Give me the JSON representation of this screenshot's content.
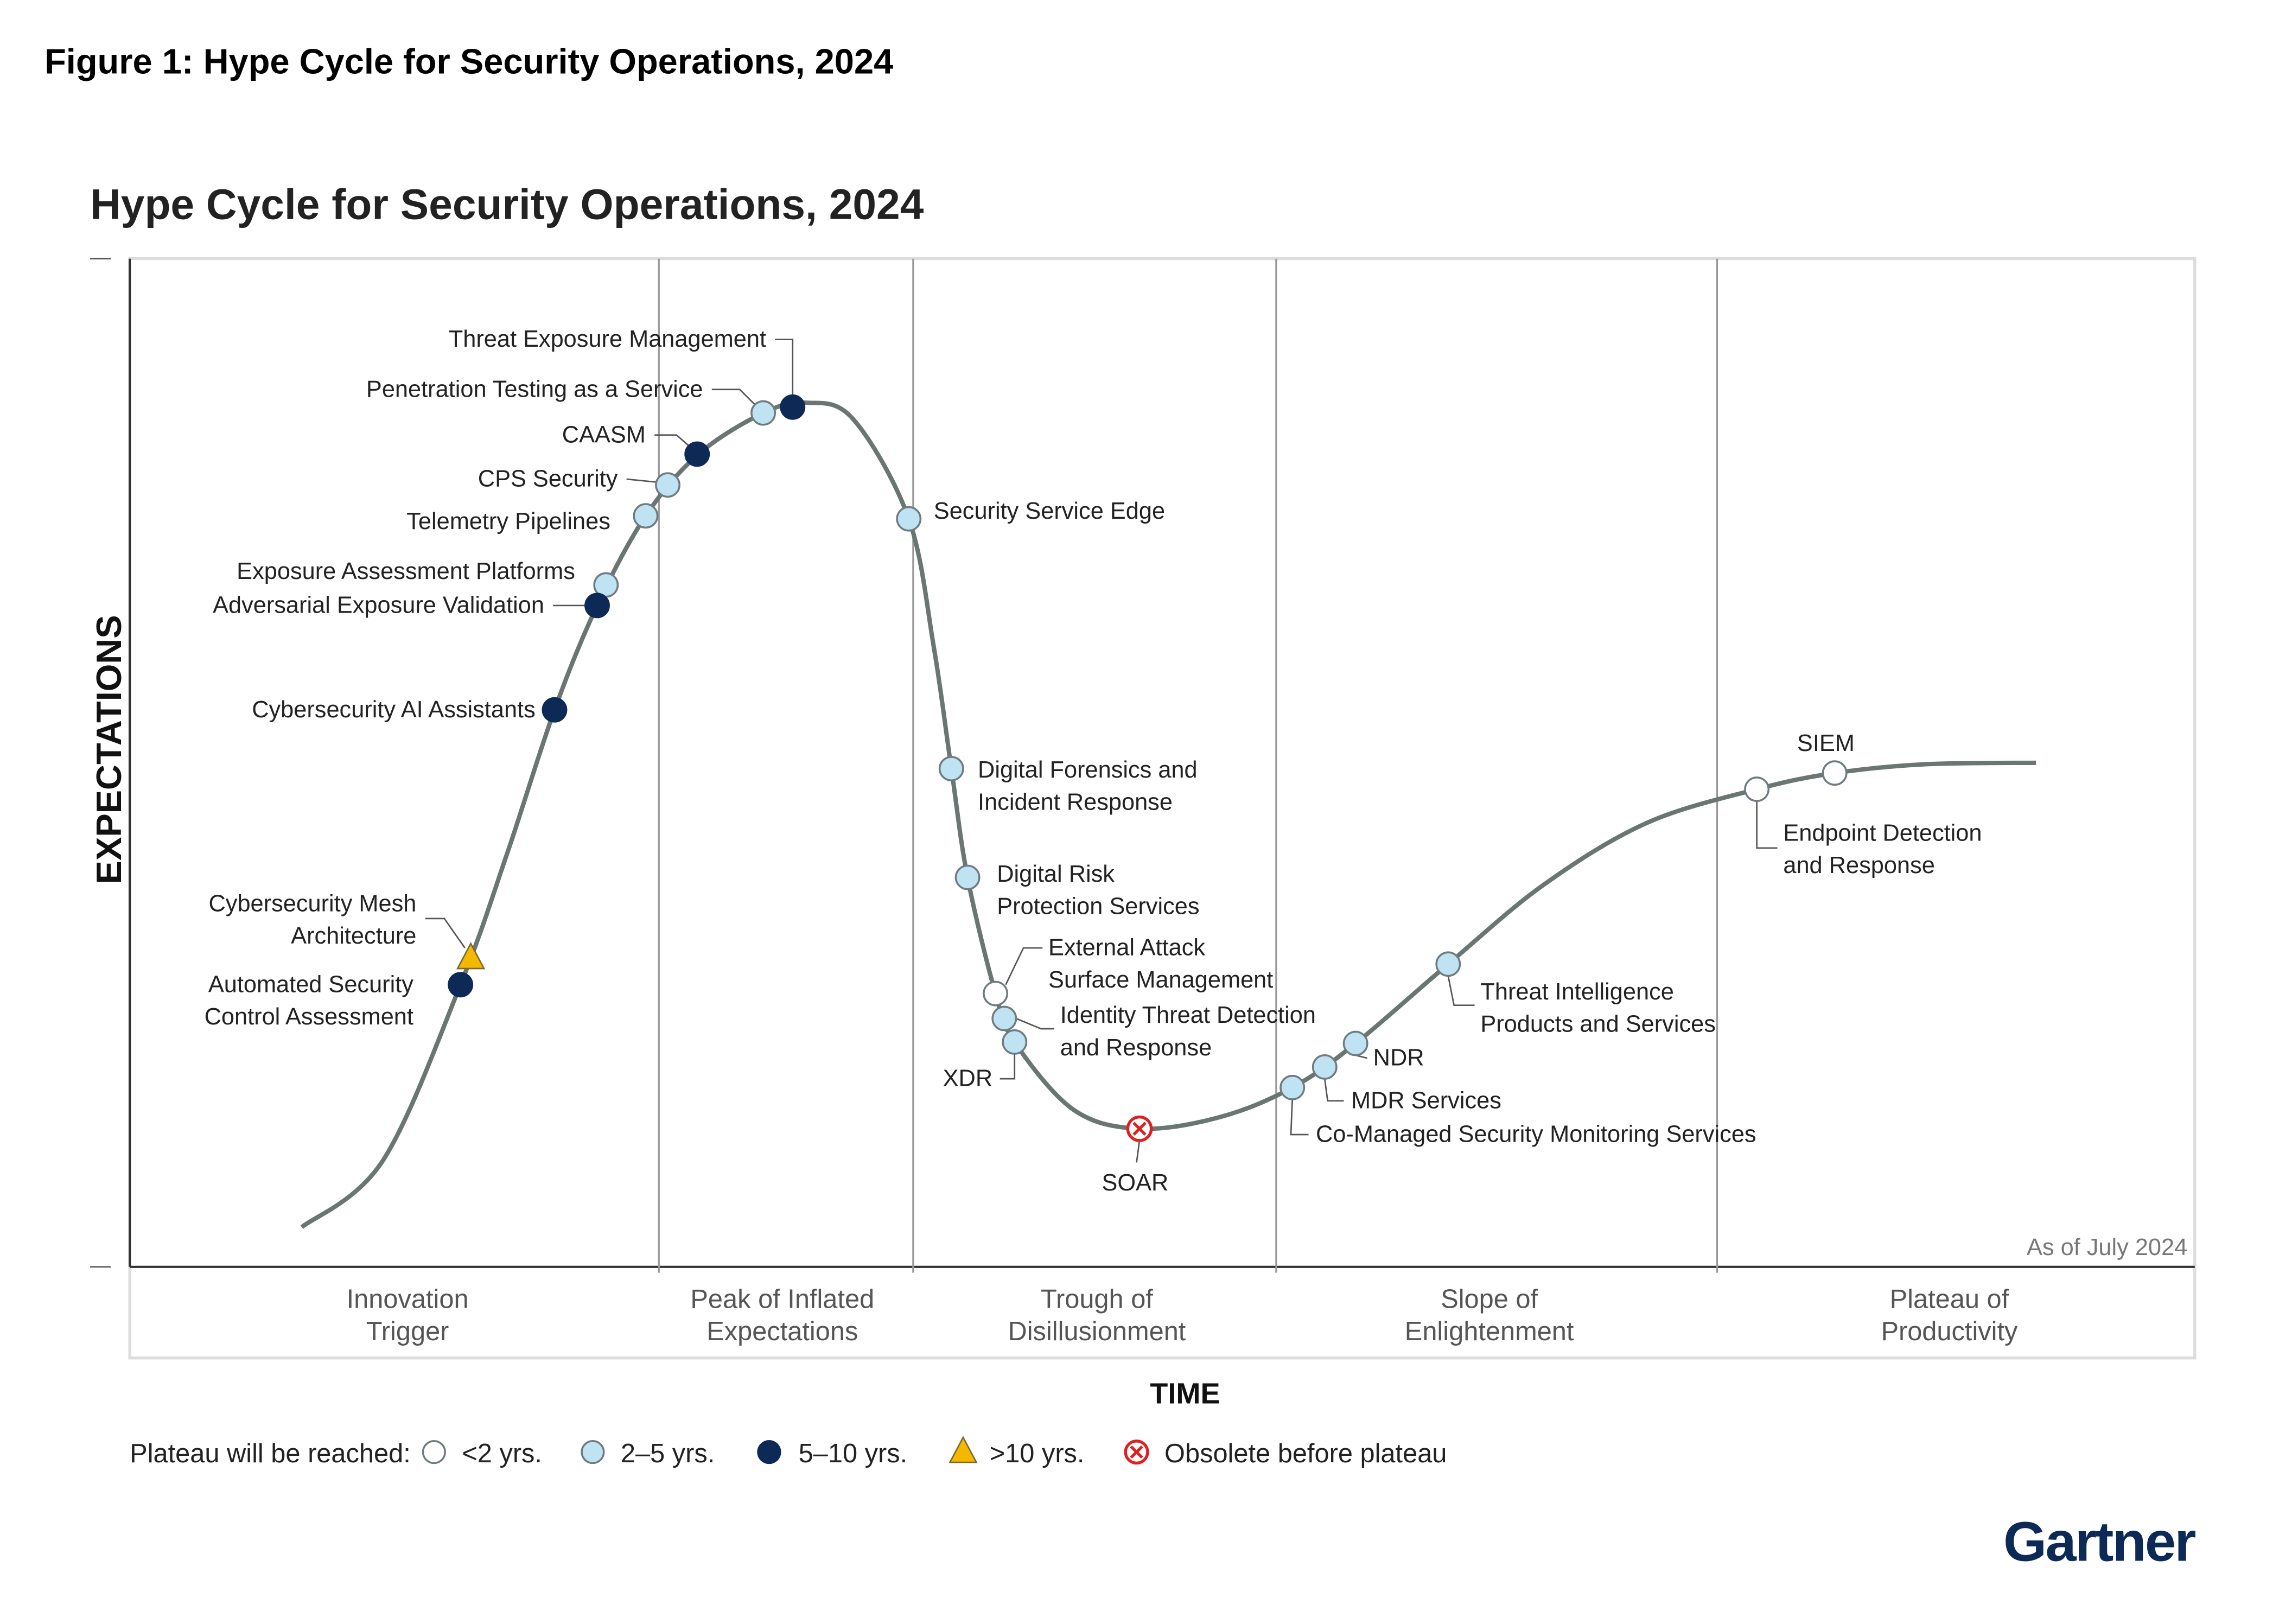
{
  "figure_caption": "Figure 1: Hype Cycle for Security Operations, 2024",
  "chart_data": {
    "type": "hype-cycle",
    "title": "Hype Cycle for Security Operations, 2024",
    "ylabel": "EXPECTATIONS",
    "xlabel": "TIME",
    "note": "As of July 2024",
    "phases": [
      [
        "Innovation",
        "Trigger"
      ],
      [
        "Peak of Inflated",
        "Expectations"
      ],
      [
        "Trough of",
        "Disillusionment"
      ],
      [
        "Slope of",
        "Enlightenment"
      ],
      [
        "Plateau of",
        "Productivity"
      ]
    ],
    "legend": {
      "title": "Plateau will be reached:",
      "entries": [
        {
          "key": "lt2",
          "label": "<2 yrs.",
          "color": "#ffffff"
        },
        {
          "key": "2to5",
          "label": "2–5 yrs.",
          "color": "#bfe3f2"
        },
        {
          "key": "5to10",
          "label": "5–10 yrs.",
          "color": "#0d2a57"
        },
        {
          "key": "gt10",
          "label": ">10 yrs.",
          "color": "#f5b800"
        },
        {
          "key": "obsolete",
          "label": "Obsolete before plateau",
          "color": "#e02020"
        }
      ]
    },
    "items": [
      {
        "label_lines": [
          "Threat Exposure Management"
        ],
        "phase": "Peak of Inflated Expectations",
        "plateau": "5to10"
      },
      {
        "label_lines": [
          "Penetration Testing as a Service"
        ],
        "phase": "Peak of Inflated Expectations",
        "plateau": "2to5"
      },
      {
        "label_lines": [
          "CAASM"
        ],
        "phase": "Peak of Inflated Expectations",
        "plateau": "5to10"
      },
      {
        "label_lines": [
          "CPS Security"
        ],
        "phase": "Peak of Inflated Expectations",
        "plateau": "2to5"
      },
      {
        "label_lines": [
          "Telemetry Pipelines"
        ],
        "phase": "Innovation Trigger",
        "plateau": "2to5"
      },
      {
        "label_lines": [
          "Exposure Assessment Platforms"
        ],
        "phase": "Innovation Trigger",
        "plateau": "2to5"
      },
      {
        "label_lines": [
          "Adversarial Exposure Validation"
        ],
        "phase": "Innovation Trigger",
        "plateau": "5to10"
      },
      {
        "label_lines": [
          "Cybersecurity AI Assistants"
        ],
        "phase": "Innovation Trigger",
        "plateau": "5to10"
      },
      {
        "label_lines": [
          "Cybersecurity Mesh",
          "Architecture"
        ],
        "phase": "Innovation Trigger",
        "plateau": "gt10"
      },
      {
        "label_lines": [
          "Automated Security",
          "Control Assessment"
        ],
        "phase": "Innovation Trigger",
        "plateau": "5to10"
      },
      {
        "label_lines": [
          "Security Service Edge"
        ],
        "phase": "Trough of Disillusionment",
        "plateau": "2to5"
      },
      {
        "label_lines": [
          "Digital Forensics and",
          "Incident Response"
        ],
        "phase": "Trough of Disillusionment",
        "plateau": "2to5"
      },
      {
        "label_lines": [
          "Digital Risk",
          "Protection Services"
        ],
        "phase": "Trough of Disillusionment",
        "plateau": "2to5"
      },
      {
        "label_lines": [
          "External Attack",
          "Surface Management"
        ],
        "phase": "Trough of Disillusionment",
        "plateau": "lt2"
      },
      {
        "label_lines": [
          "Identity Threat Detection",
          "and Response"
        ],
        "phase": "Trough of Disillusionment",
        "plateau": "2to5"
      },
      {
        "label_lines": [
          "XDR"
        ],
        "phase": "Trough of Disillusionment",
        "plateau": "2to5"
      },
      {
        "label_lines": [
          "SOAR"
        ],
        "phase": "Trough of Disillusionment",
        "plateau": "obsolete"
      },
      {
        "label_lines": [
          "Co-Managed Security Monitoring Services"
        ],
        "phase": "Slope of Enlightenment",
        "plateau": "2to5"
      },
      {
        "label_lines": [
          "MDR Services"
        ],
        "phase": "Slope of Enlightenment",
        "plateau": "2to5"
      },
      {
        "label_lines": [
          "NDR"
        ],
        "phase": "Slope of Enlightenment",
        "plateau": "2to5"
      },
      {
        "label_lines": [
          "Threat Intelligence",
          "Products and Services"
        ],
        "phase": "Slope of Enlightenment",
        "plateau": "2to5"
      },
      {
        "label_lines": [
          "Endpoint Detection",
          "and Response"
        ],
        "phase": "Plateau of Productivity",
        "plateau": "lt2"
      },
      {
        "label_lines": [
          "SIEM"
        ],
        "phase": "Plateau of Productivity",
        "plateau": "lt2"
      }
    ]
  },
  "logo": "Gartner"
}
